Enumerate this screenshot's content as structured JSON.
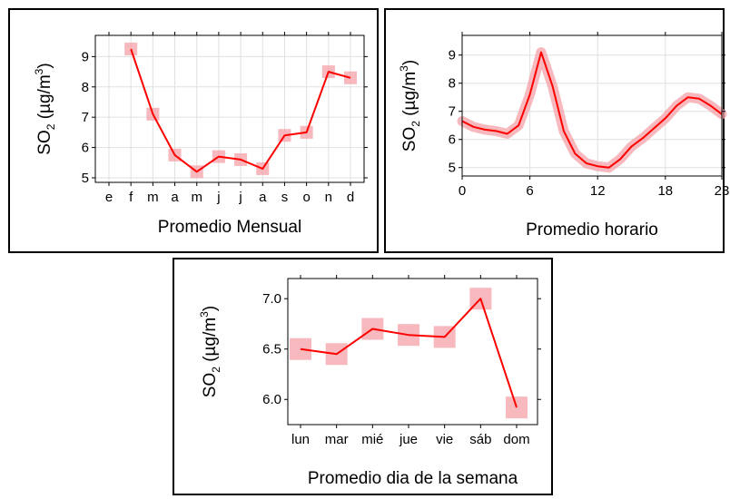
{
  "colors": {
    "line": "#ff0000",
    "ci": "#f4a0a8",
    "grid": "#e0e0e0",
    "frame": "#000000"
  },
  "ylabel": {
    "species": "SO",
    "sub": "2",
    "unit": "(µg/m",
    "sup": "3",
    "close": ")"
  },
  "chart_data": [
    {
      "type": "line",
      "xlabel": "Promedio Mensual",
      "categories": [
        "e",
        "f",
        "m",
        "a",
        "m",
        "j",
        "j",
        "a",
        "s",
        "o",
        "n",
        "d"
      ],
      "values": [
        null,
        9.25,
        7.1,
        5.75,
        5.2,
        5.7,
        5.6,
        5.3,
        6.4,
        6.5,
        8.5,
        8.3
      ],
      "ylim": [
        4.85,
        9.7
      ],
      "yticks": [
        5,
        6,
        7,
        8,
        9
      ],
      "grid": true
    },
    {
      "type": "line",
      "xlabel": "Promedio horario",
      "x": [
        0,
        1,
        2,
        3,
        4,
        5,
        6,
        7,
        8,
        9,
        10,
        11,
        12,
        13,
        14,
        15,
        16,
        17,
        18,
        19,
        20,
        21,
        22,
        23
      ],
      "values": [
        6.65,
        6.45,
        6.35,
        6.3,
        6.2,
        6.5,
        7.6,
        9.1,
        7.9,
        6.3,
        5.5,
        5.15,
        5.05,
        5.0,
        5.3,
        5.75,
        6.05,
        6.4,
        6.75,
        7.2,
        7.5,
        7.45,
        7.2,
        6.9
      ],
      "ylim": [
        4.7,
        9.7
      ],
      "xticks": [
        0,
        6,
        12,
        18,
        23
      ],
      "yticks": [
        5,
        6,
        7,
        8,
        9
      ],
      "grid": true
    },
    {
      "type": "line",
      "xlabel": "Promedio dia de la semana",
      "categories": [
        "lun",
        "mar",
        "mié",
        "jue",
        "vie",
        "sáb",
        "dom"
      ],
      "values": [
        6.5,
        6.45,
        6.7,
        6.64,
        6.62,
        7.0,
        5.92
      ],
      "ylim": [
        5.75,
        7.2
      ],
      "yticks": [
        "6.0",
        "6.5",
        "7.0"
      ],
      "grid": false
    }
  ]
}
